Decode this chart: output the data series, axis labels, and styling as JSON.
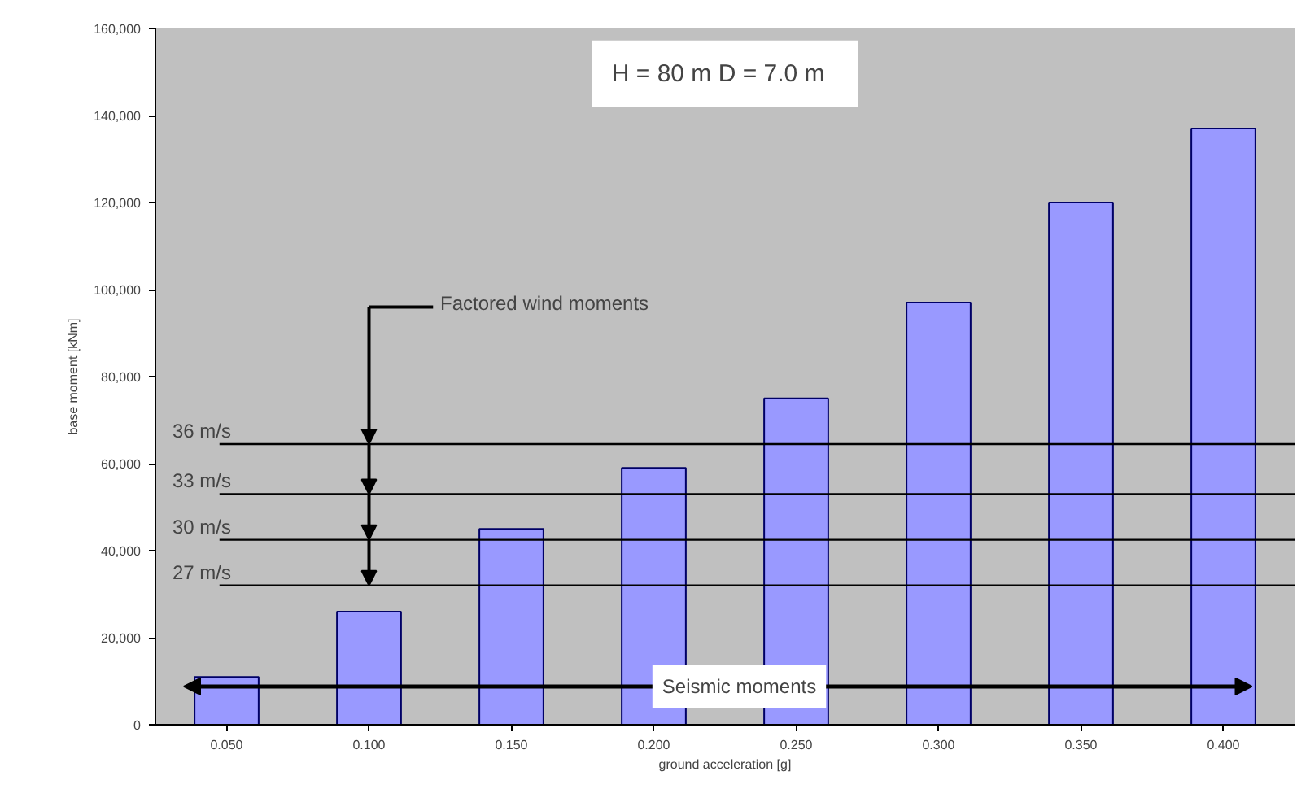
{
  "chart_data": {
    "type": "bar",
    "xlabel": "ground acceleration [g]",
    "ylabel": "base moment [kNm]",
    "categories": [
      "0.050",
      "0.100",
      "0.150",
      "0.200",
      "0.250",
      "0.300",
      "0.350",
      "0.400"
    ],
    "values": [
      11000,
      26000,
      45000,
      59000,
      75000,
      97000,
      120000,
      137000
    ],
    "color": "#9999ff",
    "ylim": [
      0,
      160000
    ],
    "yticks": [
      {
        "value": 0,
        "label": "0"
      },
      {
        "value": 20000,
        "label": "20,000"
      },
      {
        "value": 40000,
        "label": "40,000"
      },
      {
        "value": 60000,
        "label": "60,000"
      },
      {
        "value": 80000,
        "label": "80,000"
      },
      {
        "value": 100000,
        "label": "100,000"
      },
      {
        "value": 120000,
        "label": "120,000"
      },
      {
        "value": 140000,
        "label": "140,000"
      },
      {
        "value": 160000,
        "label": "160,000"
      }
    ],
    "ref_lines": [
      {
        "axis": "y",
        "value": 64500,
        "label": "36 m/s",
        "color": "#000000"
      },
      {
        "axis": "y",
        "value": 53000,
        "label": "33 m/s",
        "color": "#000000"
      },
      {
        "axis": "y",
        "value": 42500,
        "label": "30 m/s",
        "color": "#000000"
      },
      {
        "axis": "y",
        "value": 32000,
        "label": "27 m/s",
        "color": "#000000"
      }
    ],
    "annotations": [
      "H = 80 m   D = 7.0 m",
      "Factored wind moments",
      "Seismic moments"
    ],
    "grid": false
  }
}
